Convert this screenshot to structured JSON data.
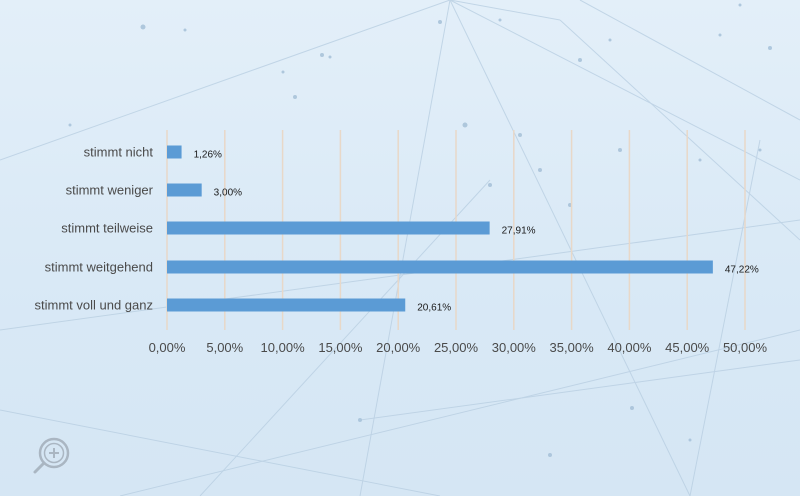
{
  "chart_data": {
    "type": "bar",
    "orientation": "horizontal",
    "categories": [
      "stimmt nicht",
      "stimmt weniger",
      "stimmt teilweise",
      "stimmt weitgehend",
      "stimmt voll und ganz"
    ],
    "values": [
      1.26,
      3.0,
      27.91,
      47.22,
      20.61
    ],
    "value_labels": [
      "1,26%",
      "3,00%",
      "27,91%",
      "47,22%",
      "20,61%"
    ],
    "x_ticks": [
      "0,00%",
      "5,00%",
      "10,00%",
      "15,00%",
      "20,00%",
      "25,00%",
      "30,00%",
      "35,00%",
      "40,00%",
      "45,00%",
      "50,00%"
    ],
    "xlim": [
      0,
      50
    ],
    "grid": "vertical",
    "bar_color": "#5b9bd5",
    "grid_color": "#e8d8c8"
  },
  "controls": {
    "zoom_icon": "zoom-in-icon"
  }
}
